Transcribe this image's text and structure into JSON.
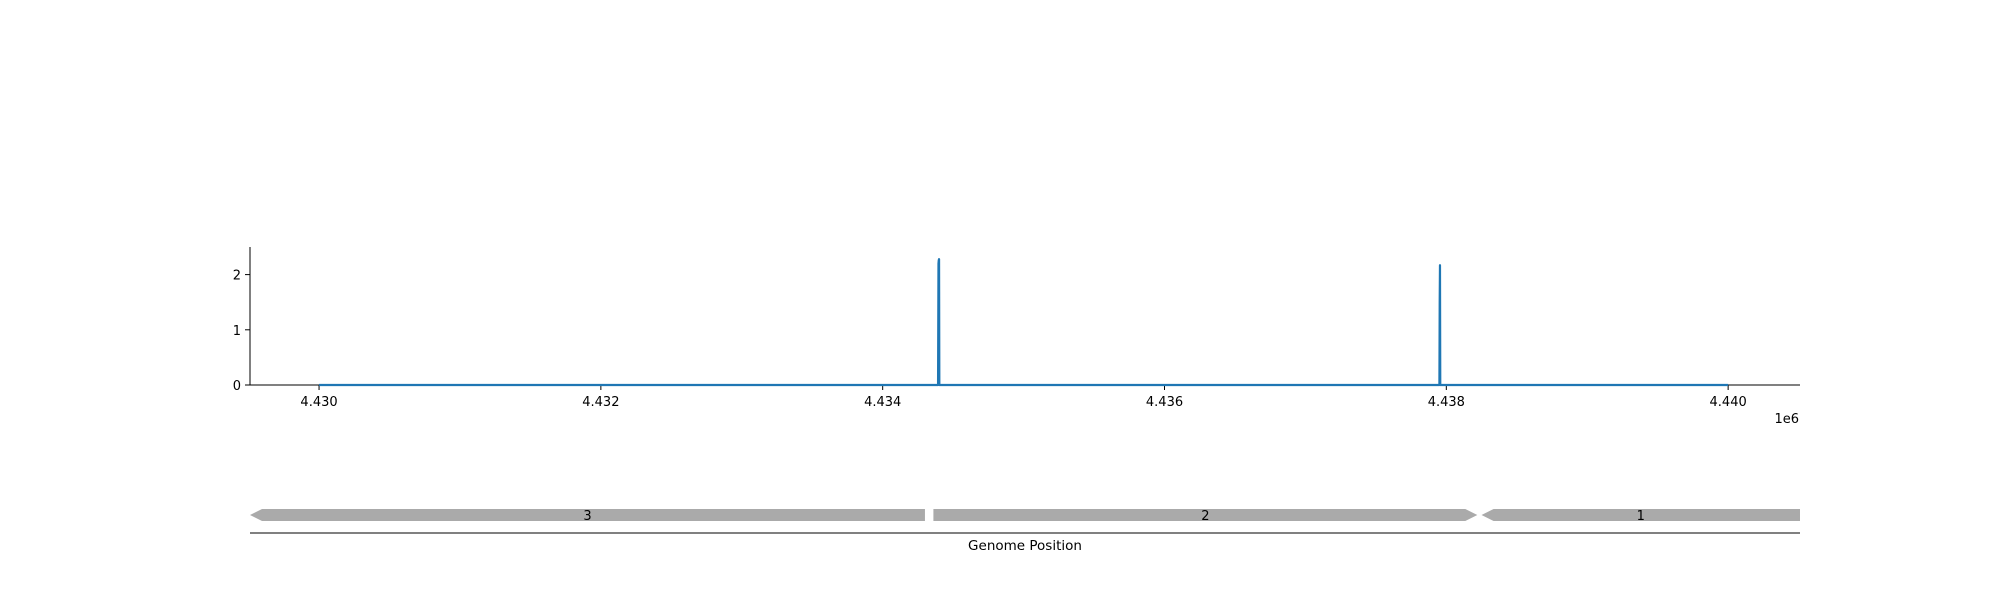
{
  "chart_data": {
    "type": "line",
    "title": "",
    "xlabel": "Genome Position",
    "ylabel": "",
    "x_offset_label": "1e6",
    "xlim": [
      4.42951,
      4.44051
    ],
    "ylim": [
      0,
      2.5
    ],
    "xticks": [
      {
        "value": 4.43,
        "label": "4.430"
      },
      {
        "value": 4.432,
        "label": "4.432"
      },
      {
        "value": 4.434,
        "label": "4.434"
      },
      {
        "value": 4.436,
        "label": "4.436"
      },
      {
        "value": 4.438,
        "label": "4.438"
      },
      {
        "value": 4.44,
        "label": "4.440"
      }
    ],
    "yticks": [
      {
        "value": 0,
        "label": "0"
      },
      {
        "value": 1,
        "label": "1"
      },
      {
        "value": 2,
        "label": "2"
      }
    ],
    "series": [
      {
        "color": "#1f77b4",
        "points": [
          [
            4.43,
            0
          ],
          [
            4.434393,
            0
          ],
          [
            4.434396,
            2.2
          ],
          [
            4.434398,
            2.26
          ],
          [
            4.4344,
            2.28
          ],
          [
            4.434402,
            0
          ],
          [
            4.437951,
            0
          ],
          [
            4.437953,
            1.5
          ],
          [
            4.437955,
            2.17
          ],
          [
            4.437957,
            0
          ],
          [
            4.44,
            0
          ]
        ]
      }
    ],
    "genes": [
      {
        "label": "3",
        "start": 4.42951,
        "end": 4.4343,
        "strand": "-"
      },
      {
        "label": "2",
        "start": 4.43436,
        "end": 4.43822,
        "strand": "+"
      },
      {
        "label": "1",
        "start": 4.43825,
        "end": 4.44051,
        "strand": "-"
      }
    ],
    "colors": {
      "line": "#1f77b4",
      "gene": "#aaaaaa",
      "axis": "#000000"
    },
    "grid": false,
    "legend": "none"
  }
}
